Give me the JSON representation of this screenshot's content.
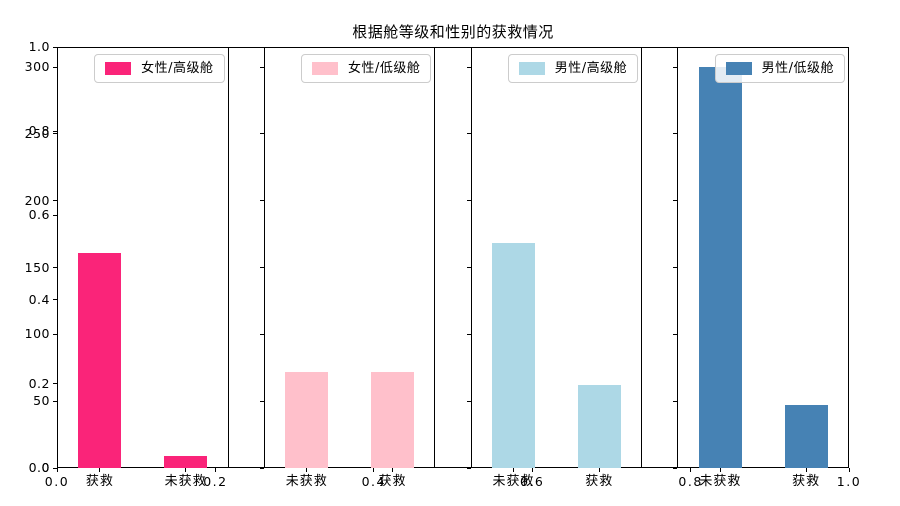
{
  "title": "根据舱等级和性别的获救情况",
  "chart_data": {
    "type": "bar",
    "title": "根据舱等级和性别的获救情况",
    "grid": false,
    "legend_position": "upper right",
    "inner_ylim": [
      0,
      315
    ],
    "inner_yticks": [
      "0",
      "50",
      "100",
      "150",
      "200",
      "250",
      "300"
    ],
    "outer_axis": {
      "xlim": [
        0.0,
        1.0
      ],
      "ylim": [
        0.0,
        1.0
      ],
      "xticks": [
        "0.0",
        "0.2",
        "0.4",
        "0.6",
        "0.8",
        "1.0"
      ],
      "yticks": [
        "0.0",
        "0.2",
        "0.4",
        "0.6",
        "0.8",
        "1.0"
      ]
    },
    "subplots": [
      {
        "legend": "女性/高级舱",
        "color": "#FA2479",
        "categories": [
          "获救",
          "未获救"
        ],
        "values": [
          161,
          9
        ]
      },
      {
        "legend": "女性/低级舱",
        "color": "#FFC0CB",
        "categories": [
          "未获救",
          "获救"
        ],
        "values": [
          72,
          72
        ]
      },
      {
        "legend": "男性/高级舱",
        "color": "#ADD8E6",
        "categories": [
          "未获救",
          "获救"
        ],
        "values": [
          168,
          62
        ]
      },
      {
        "legend": "男性/低级舱",
        "color": "#4682B4",
        "categories": [
          "未获救",
          "获救"
        ],
        "values": [
          300,
          47
        ]
      }
    ]
  }
}
